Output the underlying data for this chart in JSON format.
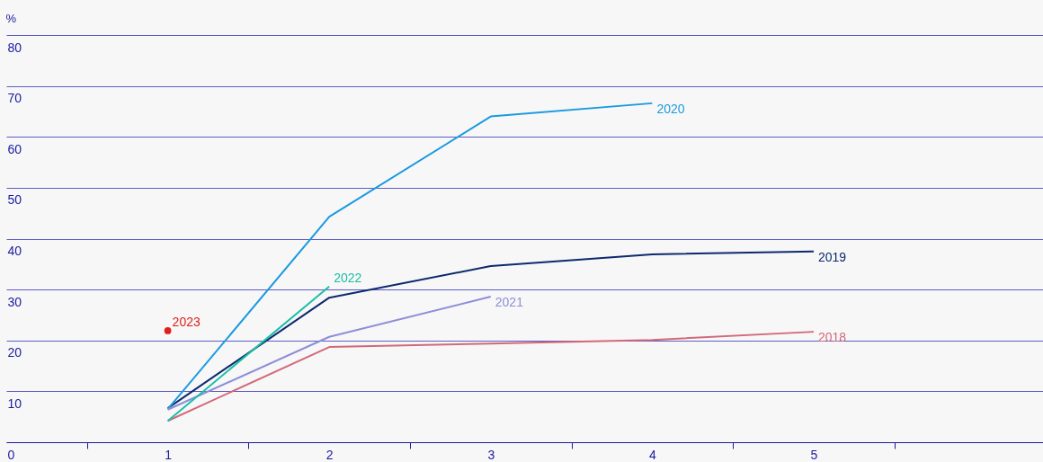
{
  "chart_data": {
    "type": "line",
    "ylabel": "%",
    "xlim": [
      0,
      6.42
    ],
    "xticks": [
      {
        "value": 0.5,
        "label": null
      },
      1,
      {
        "value": 1.5,
        "label": null
      },
      2,
      {
        "value": 2.5,
        "label": null
      },
      3,
      {
        "value": 3.5,
        "label": null
      },
      4,
      {
        "value": 4.5,
        "label": null
      },
      5,
      {
        "value": 5.5,
        "label": null
      }
    ],
    "ylim": [
      0,
      80
    ],
    "yticks": [
      0,
      10,
      20,
      30,
      40,
      50,
      60,
      70,
      80
    ],
    "grid": "y",
    "legend": false,
    "marker": "none",
    "line_style": "solid",
    "series": [
      {
        "name": "2018",
        "color": "#d2697a",
        "x": [
          1,
          2,
          3,
          4,
          5
        ],
        "values": [
          4.2,
          18.7,
          19.4,
          20.1,
          21.7
        ]
      },
      {
        "name": "2019",
        "color": "#0d2a6e",
        "x": [
          1,
          2,
          3,
          4,
          5
        ],
        "values": [
          6.7,
          28.4,
          34.6,
          36.9,
          37.5
        ]
      },
      {
        "name": "2020",
        "color": "#1a9ae0",
        "x": [
          1,
          2,
          3,
          4
        ],
        "values": [
          6.5,
          44.3,
          64,
          66.6
        ]
      },
      {
        "name": "2021",
        "color": "#8e8ed8",
        "x": [
          1,
          2,
          3
        ],
        "values": [
          6.4,
          20.7,
          28.6
        ]
      },
      {
        "name": "2022",
        "color": "#1bbfa5",
        "x": [
          1,
          2
        ],
        "values": [
          4.2,
          30.6
        ]
      },
      {
        "name": "2023",
        "color": "#e0201b",
        "type": "scatter",
        "marker": "circle",
        "x": [
          1
        ],
        "values": [
          21.9
        ]
      }
    ]
  }
}
